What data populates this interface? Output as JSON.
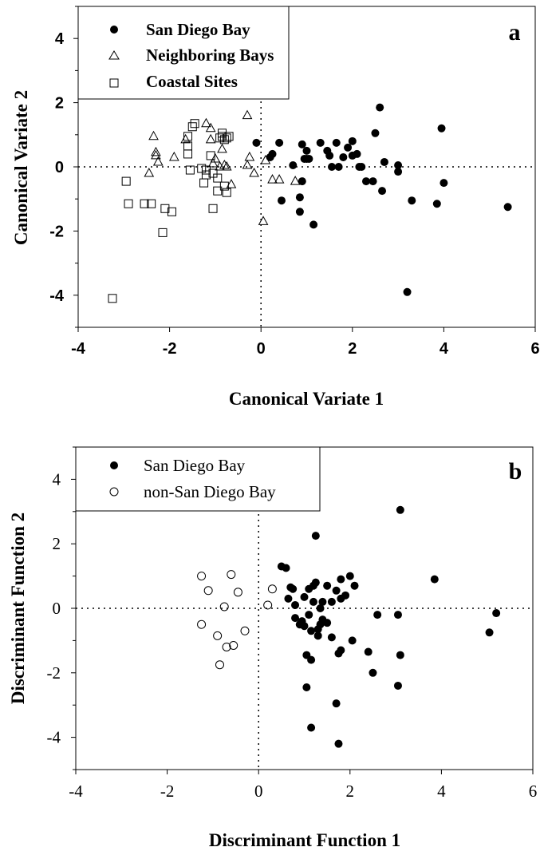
{
  "chart_data": [
    {
      "type": "scatter",
      "panel_label": "a",
      "xlabel": "Canonical Variate 1",
      "ylabel": "Canonical Variate 2",
      "xlim": [
        -4,
        6
      ],
      "ylim": [
        -5,
        5
      ],
      "xticks": [
        "-4",
        "-2",
        "0",
        "2",
        "4",
        "6"
      ],
      "yticks": [
        "4",
        "2",
        "0",
        "-2",
        "-4"
      ],
      "xtick_values": [
        -4,
        -2,
        0,
        2,
        4,
        6
      ],
      "ytick_values": [
        4,
        2,
        0,
        -2,
        -4
      ],
      "zero_lines": "dotted",
      "grid": false,
      "legend_position": "top-left",
      "series": [
        {
          "name": "San Diego Bay",
          "marker": "filled-circle",
          "x": [
            -0.1,
            0.2,
            0.25,
            0.4,
            0.7,
            0.9,
            1.0,
            1.05,
            1.3,
            1.45,
            1.5,
            1.55,
            1.65,
            1.7,
            1.8,
            1.9,
            2.0,
            2.1,
            2.15,
            2.3,
            2.45,
            2.5,
            2.6,
            2.65,
            2.7,
            3.0,
            3.0,
            3.3,
            3.2,
            3.85,
            3.95,
            4.0,
            5.4,
            0.45,
            0.85,
            0.85,
            0.9,
            1.15,
            2.2,
            2.0,
            1.0,
            0.95
          ],
          "y": [
            0.75,
            0.3,
            0.4,
            0.75,
            0.05,
            0.7,
            0.5,
            0.25,
            0.75,
            0.5,
            0.35,
            0.0,
            0.75,
            0.0,
            0.3,
            0.6,
            0.35,
            0.4,
            0.0,
            -0.45,
            -0.45,
            1.05,
            1.85,
            -0.75,
            0.15,
            0.05,
            -0.15,
            -1.05,
            -3.9,
            -1.15,
            1.2,
            -0.5,
            -1.25,
            -1.05,
            -0.95,
            -1.4,
            -0.45,
            -1.8,
            0.0,
            0.8,
            0.25,
            0.25
          ]
        },
        {
          "name": "Neighboring Bays",
          "marker": "open-triangle",
          "x": [
            -2.35,
            -2.3,
            -2.3,
            -2.25,
            -2.45,
            -1.9,
            -1.65,
            -1.2,
            -1.1,
            -1.1,
            -1.0,
            -0.9,
            -0.85,
            -0.8,
            -0.75,
            -0.65,
            -0.3,
            -0.25,
            -0.15,
            0.1,
            0.05,
            -0.3,
            0.25,
            0.4,
            0.75,
            -1.05
          ],
          "y": [
            0.95,
            0.45,
            0.35,
            0.15,
            -0.2,
            0.3,
            0.85,
            1.35,
            1.2,
            0.85,
            0.25,
            0.0,
            0.55,
            0.05,
            0.0,
            -0.55,
            1.6,
            0.3,
            -0.2,
            0.2,
            -1.7,
            0.05,
            -0.4,
            -0.4,
            -0.45,
            0.1
          ]
        },
        {
          "name": "Coastal Sites",
          "marker": "open-square",
          "x": [
            -3.25,
            -2.9,
            -2.95,
            -2.55,
            -2.4,
            -2.1,
            -1.95,
            -2.15,
            -1.6,
            -1.6,
            -1.6,
            -1.45,
            -1.5,
            -1.55,
            -1.3,
            -1.25,
            -1.2,
            -1.2,
            -1.05,
            -1.05,
            -0.95,
            -0.95,
            -0.9,
            -0.85,
            -0.85,
            -0.8,
            -0.8,
            -0.75,
            -0.7,
            -1.1,
            -0.75
          ],
          "y": [
            -4.1,
            -1.15,
            -0.45,
            -1.15,
            -1.15,
            -1.3,
            -1.4,
            -2.05,
            0.95,
            0.65,
            0.4,
            1.35,
            1.25,
            -0.1,
            -0.05,
            -0.5,
            -0.1,
            -0.25,
            -0.2,
            -1.3,
            -0.75,
            -0.35,
            0.9,
            1.05,
            0.95,
            0.85,
            -0.6,
            -0.8,
            0.95,
            0.35,
            0.9
          ]
        }
      ]
    },
    {
      "type": "scatter",
      "panel_label": "b",
      "xlabel": "Discriminant Function 1",
      "ylabel": "Discriminant Function 2",
      "xlim": [
        -4,
        6
      ],
      "ylim": [
        -5,
        5
      ],
      "xticks": [
        "-4",
        "-2",
        "0",
        "2",
        "4",
        "6"
      ],
      "yticks": [
        "4",
        "2",
        "0",
        "-2",
        "-4"
      ],
      "xtick_values": [
        -4,
        -2,
        0,
        2,
        4,
        6
      ],
      "ytick_values": [
        4,
        2,
        0,
        -2,
        -4
      ],
      "zero_lines": "dotted",
      "grid": false,
      "legend_position": "top-left",
      "series": [
        {
          "name": "San Diego Bay",
          "marker": "filled-circle",
          "x": [
            0.5,
            0.6,
            0.65,
            0.75,
            0.8,
            0.8,
            0.9,
            0.95,
            1.0,
            1.0,
            1.05,
            1.1,
            1.1,
            1.15,
            1.2,
            1.2,
            1.25,
            1.3,
            1.3,
            1.35,
            1.4,
            1.4,
            1.5,
            1.5,
            1.6,
            1.7,
            1.75,
            1.8,
            1.8,
            1.9,
            2.0,
            2.05,
            2.1,
            2.4,
            2.5,
            2.6,
            3.05,
            3.05,
            3.1,
            3.1,
            3.85,
            5.05,
            5.2,
            1.05,
            1.15,
            1.15,
            1.7,
            1.75,
            1.25,
            1.8,
            1.35,
            1.6,
            0.7
          ],
          "y": [
            1.3,
            1.25,
            0.3,
            0.6,
            0.1,
            -0.3,
            -0.5,
            -0.4,
            0.35,
            -0.55,
            -1.45,
            0.6,
            -0.2,
            -1.6,
            0.7,
            0.2,
            0.8,
            -0.65,
            -0.85,
            -0.5,
            0.2,
            -0.35,
            0.7,
            -0.45,
            0.2,
            0.55,
            -1.4,
            -1.3,
            0.9,
            0.4,
            1.0,
            -1.0,
            0.7,
            -1.35,
            -2.0,
            -0.2,
            -0.2,
            -2.4,
            -1.45,
            3.05,
            0.9,
            -0.75,
            -0.15,
            -2.45,
            -3.7,
            -0.7,
            -2.95,
            -4.2,
            2.25,
            0.3,
            0.0,
            -0.9,
            0.65
          ]
        },
        {
          "name": "non-San Diego Bay",
          "marker": "open-circle",
          "x": [
            -1.25,
            -1.1,
            -1.25,
            -0.9,
            -0.75,
            -0.6,
            -0.55,
            -0.7,
            -0.85,
            -0.45,
            -0.3,
            0.2,
            0.3
          ],
          "y": [
            1.0,
            0.55,
            -0.5,
            -0.85,
            0.05,
            1.05,
            -1.15,
            -1.2,
            -1.75,
            0.5,
            -0.7,
            0.1,
            0.6
          ]
        }
      ]
    }
  ]
}
